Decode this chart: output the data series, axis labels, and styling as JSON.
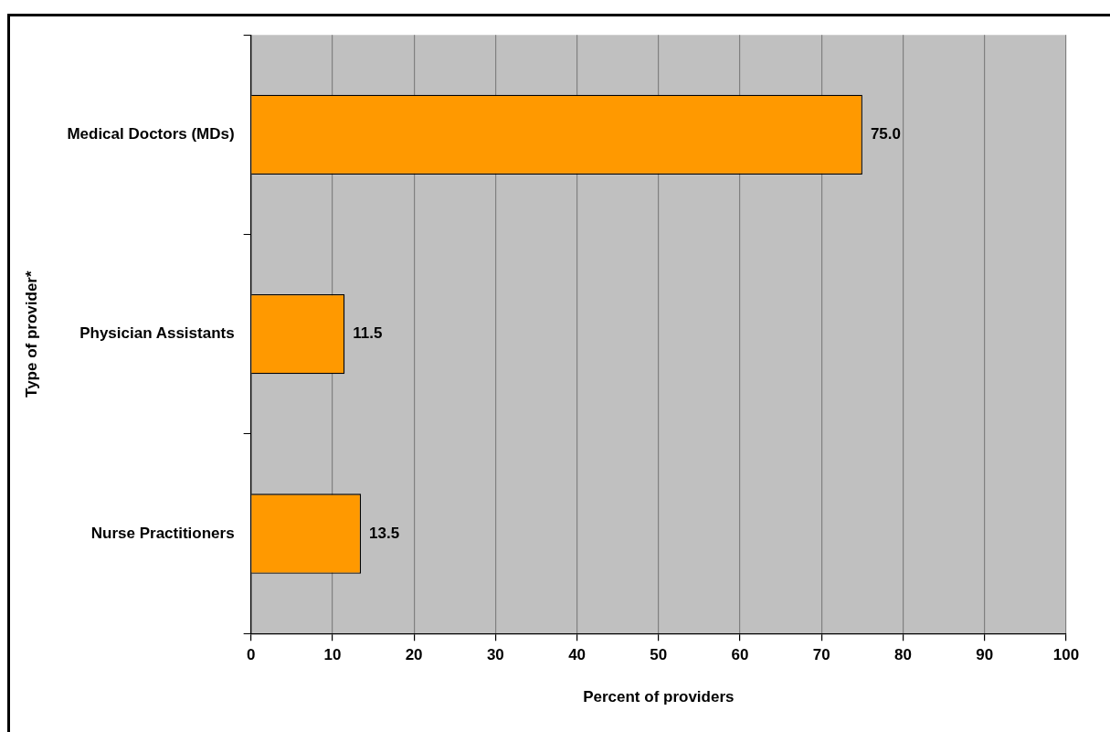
{
  "chart_data": {
    "type": "bar",
    "orientation": "horizontal",
    "xlabel": "Percent of providers",
    "ylabel": "Type of provider*",
    "categories": [
      "Medical Doctors (MDs)",
      "Physician Assistants",
      "Nurse Practitioners"
    ],
    "values": [
      75.0,
      11.5,
      13.5
    ],
    "color": "#ff9900",
    "value_labels": [
      "75.0",
      "11.5",
      "13.5"
    ],
    "xlim": [
      0,
      100
    ],
    "xticks": [
      0,
      10,
      20,
      30,
      40,
      50,
      60,
      70,
      80,
      90,
      100
    ],
    "grid": "x",
    "legend": false
  }
}
